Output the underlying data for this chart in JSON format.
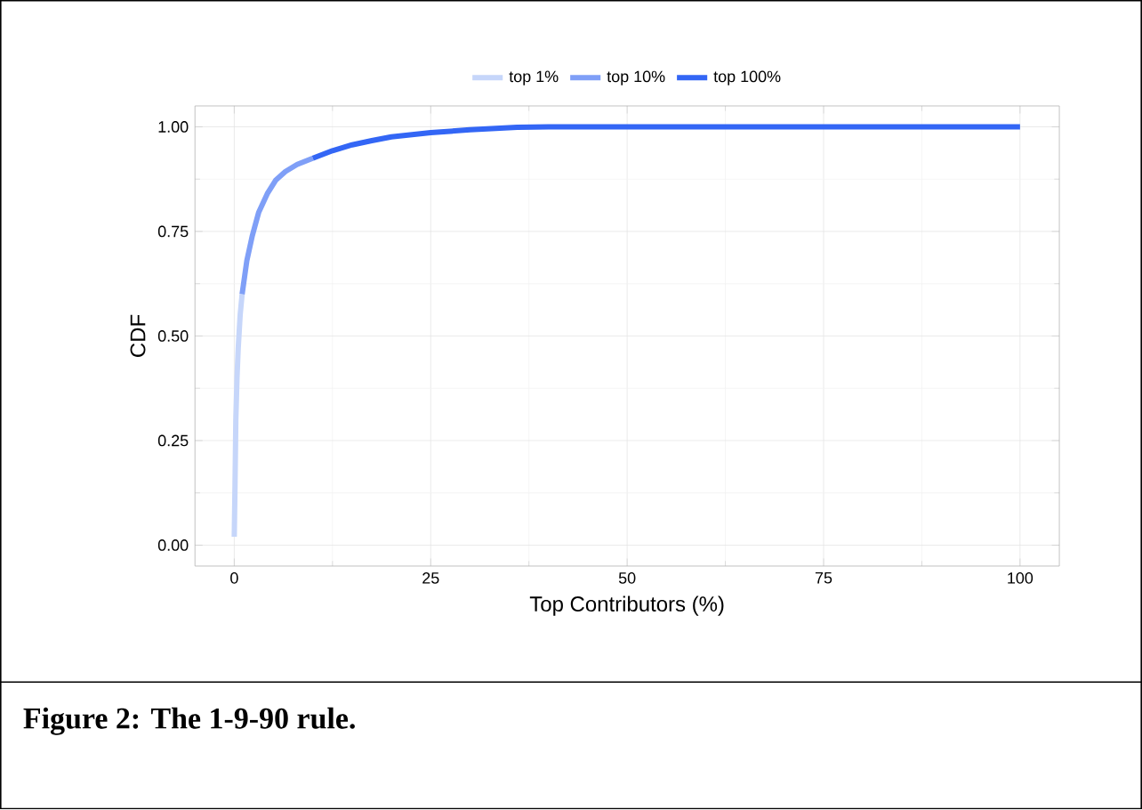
{
  "chart_data": {
    "type": "line",
    "xlabel": "Top Contributors (%)",
    "ylabel": "CDF",
    "series": [
      {
        "name": "top 1%",
        "color": "#c6d6fa",
        "x": [
          0,
          0.1,
          0.2,
          0.35,
          0.5,
          0.75,
          1
        ],
        "values": [
          0.02,
          0.15,
          0.3,
          0.4,
          0.47,
          0.55,
          0.6
        ]
      },
      {
        "name": "top 10%",
        "color": "#7f9ff7",
        "x": [
          1,
          1.6,
          2.3,
          3.1,
          4.2,
          5.3,
          6.5,
          8,
          10
        ],
        "values": [
          0.6,
          0.68,
          0.74,
          0.795,
          0.84,
          0.873,
          0.893,
          0.91,
          0.925
        ]
      },
      {
        "name": "top 100%",
        "color": "#3366f5",
        "x": [
          10,
          12.5,
          15,
          17.5,
          20,
          25,
          30,
          36,
          40,
          60,
          80,
          100
        ],
        "values": [
          0.925,
          0.943,
          0.957,
          0.967,
          0.976,
          0.986,
          0.993,
          0.999,
          1.0,
          1.0,
          1.0,
          1.0
        ]
      }
    ],
    "xlim": [
      -5,
      105
    ],
    "ylim": [
      -0.05,
      1.05
    ],
    "xticks": [
      0,
      25,
      50,
      75,
      100
    ],
    "yticks": [
      {
        "value": 0,
        "label": "0.00"
      },
      {
        "value": 0.25,
        "label": "0.25"
      },
      {
        "value": 0.5,
        "label": "0.50"
      },
      {
        "value": 0.75,
        "label": "0.75"
      },
      {
        "value": 1,
        "label": "1.00"
      }
    ],
    "grid": true,
    "legend": "top",
    "line_style": "solid",
    "marker": "none",
    "annotations": [
      "Figure 2: The 1-9-90 rule."
    ]
  }
}
